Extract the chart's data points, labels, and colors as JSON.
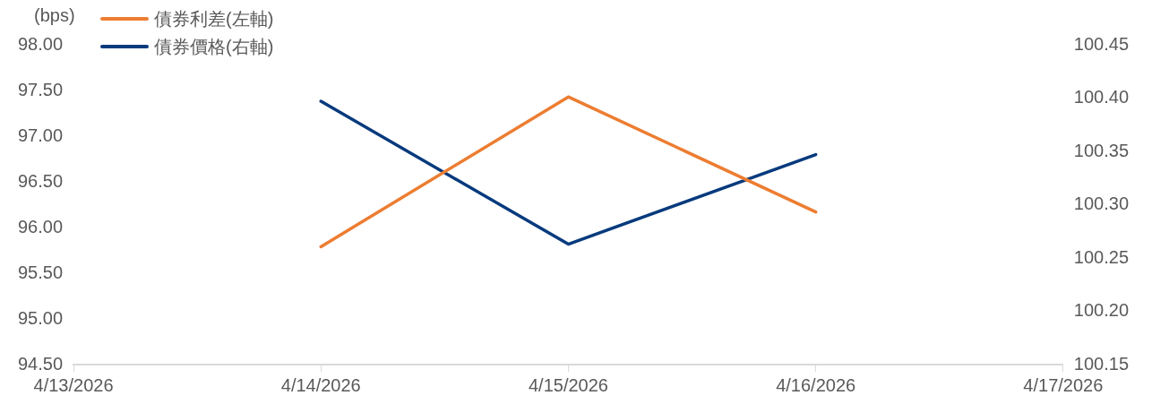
{
  "chart_data": {
    "type": "line",
    "ylabel": "(bps)",
    "legend": "top left",
    "categories": [
      "4/13/2026",
      "4/14/2026",
      "4/15/2026",
      "4/16/2026",
      "4/17/2026"
    ],
    "series": [
      {
        "name": "債券利差(左軸)",
        "color": "#ed7d31",
        "values": [
          null,
          95.79,
          97.43,
          96.17,
          null
        ]
      },
      {
        "name": "債券價格(右軸)",
        "color": "#073a7d",
        "axis": "y2",
        "values": [
          null,
          100.397,
          100.263,
          100.347,
          null
        ]
      }
    ],
    "ylim": [
      94.5,
      98
    ],
    "yticks": [
      {
        "value": 94.5,
        "label": "94.50"
      },
      {
        "value": 95,
        "label": "95.00"
      },
      {
        "value": 95.5,
        "label": "95.50"
      },
      {
        "value": 96,
        "label": "96.00"
      },
      {
        "value": 96.5,
        "label": "96.50"
      },
      {
        "value": 97,
        "label": "97.00"
      },
      {
        "value": 97.5,
        "label": "97.50"
      },
      {
        "value": 98,
        "label": "98.00"
      }
    ],
    "y2lim": [
      100.15,
      100.45
    ],
    "y2ticks": [
      {
        "value": 100.15,
        "label": "100.15"
      },
      {
        "value": 100.2,
        "label": "100.20"
      },
      {
        "value": 100.25,
        "label": "100.25"
      },
      {
        "value": 100.3,
        "label": "100.30"
      },
      {
        "value": 100.35,
        "label": "100.35"
      },
      {
        "value": 100.4,
        "label": "100.40"
      },
      {
        "value": 100.45,
        "label": "100.45"
      }
    ]
  }
}
